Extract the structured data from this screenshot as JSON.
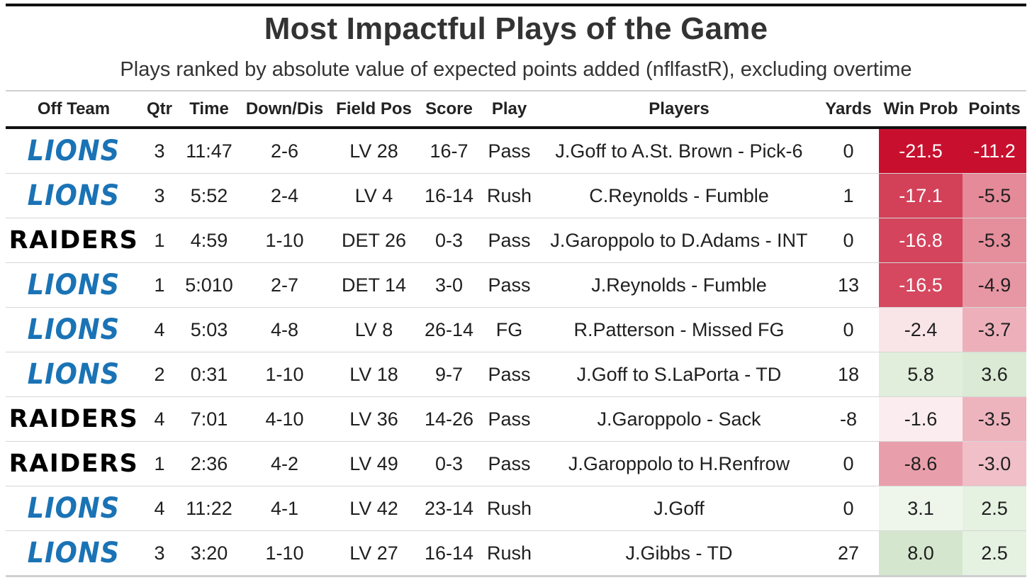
{
  "title": "Most Impactful Plays of the Game",
  "subtitle": "Plays ranked by absolute value of expected points added (nflfastR), excluding overtime",
  "columns": [
    "Off Team",
    "Qtr",
    "Time",
    "Down/Dis",
    "Field Pos",
    "Score",
    "Play",
    "Players",
    "Yards",
    "Win Prob",
    "Points"
  ],
  "team_logos": {
    "LIONS": {
      "text": "LIONS",
      "color": "#1a73b5"
    },
    "RAIDERS": {
      "text": "RAIDERS",
      "color": "#000000"
    }
  },
  "chart_data": {
    "type": "table",
    "title": "Most Impactful Plays of the Game",
    "subtitle": "Plays ranked by absolute value of expected points added (nflfastR), excluding overtime",
    "columns": [
      "Off Team",
      "Qtr",
      "Time",
      "Down/Dis",
      "Field Pos",
      "Score",
      "Play",
      "Players",
      "Yards",
      "Win Prob",
      "Points"
    ],
    "color_scale": {
      "negative_strong": "#c8102e",
      "neutral": "#ffffff",
      "positive_strong": "#8cbf7a"
    },
    "rows": [
      {
        "team": "LIONS",
        "qtr": "3",
        "time": "11:47",
        "down": "2-6",
        "field_pos": "LV 28",
        "score": "16-7",
        "play": "Pass",
        "players": "J.Goff to A.St. Brown - Pick-6",
        "yards": "0",
        "win_prob": -21.5,
        "win_prob_label": "-21.5",
        "points": -11.2,
        "points_label": "-11.2"
      },
      {
        "team": "LIONS",
        "qtr": "3",
        "time": "5:52",
        "down": "2-4",
        "field_pos": "LV 4",
        "score": "16-14",
        "play": "Rush",
        "players": "C.Reynolds - Fumble",
        "yards": "1",
        "win_prob": -17.1,
        "win_prob_label": "-17.1",
        "points": -5.5,
        "points_label": "-5.5"
      },
      {
        "team": "RAIDERS",
        "qtr": "1",
        "time": "4:59",
        "down": "1-10",
        "field_pos": "DET 26",
        "score": "0-3",
        "play": "Pass",
        "players": "J.Garoppolo to D.Adams - INT",
        "yards": "0",
        "win_prob": -16.8,
        "win_prob_label": "-16.8",
        "points": -5.3,
        "points_label": "-5.3"
      },
      {
        "team": "LIONS",
        "qtr": "1",
        "time": "5:010",
        "down": "2-7",
        "field_pos": "DET 14",
        "score": "3-0",
        "play": "Pass",
        "players": "J.Reynolds - Fumble",
        "yards": "13",
        "win_prob": -16.5,
        "win_prob_label": "-16.5",
        "points": -4.9,
        "points_label": "-4.9"
      },
      {
        "team": "LIONS",
        "qtr": "4",
        "time": "5:03",
        "down": "4-8",
        "field_pos": "LV 8",
        "score": "26-14",
        "play": "FG",
        "players": "R.Patterson - Missed FG",
        "yards": "0",
        "win_prob": -2.4,
        "win_prob_label": "-2.4",
        "points": -3.7,
        "points_label": "-3.7"
      },
      {
        "team": "LIONS",
        "qtr": "2",
        "time": "0:31",
        "down": "1-10",
        "field_pos": "LV 18",
        "score": "9-7",
        "play": "Pass",
        "players": "J.Goff to S.LaPorta - TD",
        "yards": "18",
        "win_prob": 5.8,
        "win_prob_label": "5.8",
        "points": 3.6,
        "points_label": "3.6"
      },
      {
        "team": "RAIDERS",
        "qtr": "4",
        "time": "7:01",
        "down": "4-10",
        "field_pos": "LV 36",
        "score": "14-26",
        "play": "Pass",
        "players": "J.Garoppolo - Sack",
        "yards": "-8",
        "win_prob": -1.6,
        "win_prob_label": "-1.6",
        "points": -3.5,
        "points_label": "-3.5"
      },
      {
        "team": "RAIDERS",
        "qtr": "1",
        "time": "2:36",
        "down": "4-2",
        "field_pos": "LV 49",
        "score": "0-3",
        "play": "Pass",
        "players": "J.Garoppolo to H.Renfrow",
        "yards": "0",
        "win_prob": -8.6,
        "win_prob_label": "-8.6",
        "points": -3.0,
        "points_label": "-3.0"
      },
      {
        "team": "LIONS",
        "qtr": "4",
        "time": "11:22",
        "down": "4-1",
        "field_pos": "LV 42",
        "score": "23-14",
        "play": "Rush",
        "players": "J.Goff",
        "yards": "0",
        "win_prob": 3.1,
        "win_prob_label": "3.1",
        "points": 2.5,
        "points_label": "2.5"
      },
      {
        "team": "LIONS",
        "qtr": "3",
        "time": "3:20",
        "down": "1-10",
        "field_pos": "LV 27",
        "score": "16-14",
        "play": "Rush",
        "players": "J.Gibbs - TD",
        "yards": "27",
        "win_prob": 8.0,
        "win_prob_label": "8.0",
        "points": 2.5,
        "points_label": "2.5"
      }
    ]
  }
}
